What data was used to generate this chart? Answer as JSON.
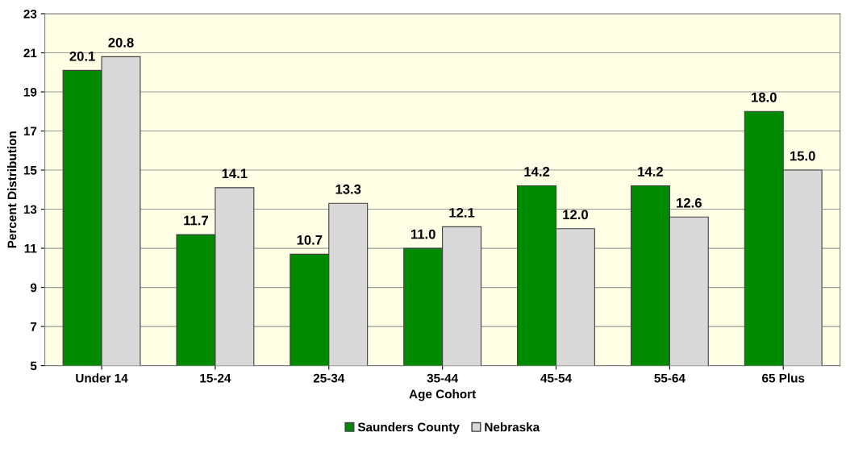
{
  "chart_data": {
    "type": "bar",
    "xlabel": "Age Cohort",
    "ylabel": "Percent Distribution",
    "categories": [
      "Under 14",
      "15-24",
      "25-34",
      "35-44",
      "45-54",
      "55-64",
      "65 Plus"
    ],
    "series": [
      {
        "name": "Saunders County",
        "color": "#008a00",
        "values": [
          20.1,
          11.7,
          10.7,
          11.0,
          14.2,
          14.2,
          18.0
        ],
        "value_labels": [
          "20.1",
          "11.7",
          "10.7",
          "11.0",
          "14.2",
          "14.2",
          "18.0"
        ]
      },
      {
        "name": "Nebraska",
        "color": "#d9d9d9",
        "values": [
          20.8,
          14.1,
          13.3,
          12.1,
          12.0,
          12.6,
          15.0
        ],
        "value_labels": [
          "20.8",
          "14.1",
          "13.3",
          "12.1",
          "12.0",
          "12.6",
          "15.0"
        ]
      }
    ],
    "ylim": [
      5,
      23
    ],
    "yticks": [
      5,
      7,
      9,
      11,
      13,
      15,
      17,
      19,
      21,
      23
    ],
    "grid": "y",
    "legend": "bottom"
  }
}
